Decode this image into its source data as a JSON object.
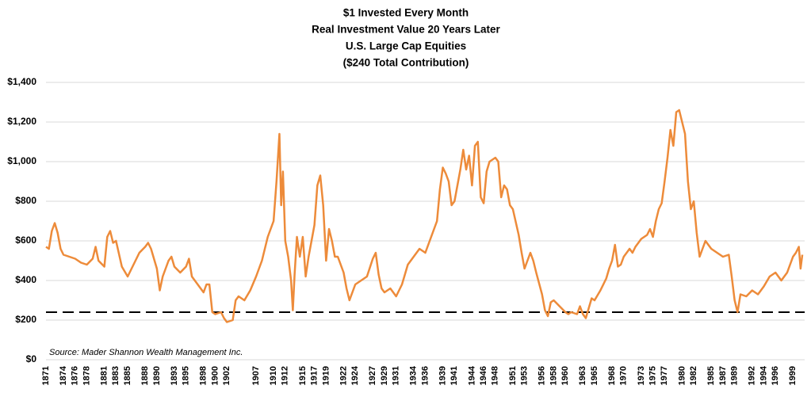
{
  "chart_data": {
    "type": "line",
    "title": [
      "$1 Invested Every Month",
      "Real Investment Value 20 Years Later",
      "U.S. Large Cap Equities",
      "($240 Total Contribution)"
    ],
    "annotation": "Source: Mader Shannon Wealth Management Inc.",
    "reference_line": {
      "value": 240,
      "color": "#000000",
      "style": "dashed"
    },
    "ylim": [
      0,
      1400
    ],
    "yticks": [
      {
        "value": 0,
        "label": "$0"
      },
      {
        "value": 200,
        "label": "$200"
      },
      {
        "value": 400,
        "label": "$400"
      },
      {
        "value": 600,
        "label": "$600"
      },
      {
        "value": 800,
        "label": "$800"
      },
      {
        "value": 1000,
        "label": "$1,000"
      },
      {
        "value": 1200,
        "label": "$1,200"
      },
      {
        "value": 1400,
        "label": "$1,400"
      }
    ],
    "xlim": [
      1871,
      2001
    ],
    "xticks": [
      1871,
      1874,
      1876,
      1878,
      1881,
      1883,
      1885,
      1888,
      1890,
      1893,
      1895,
      1898,
      1900,
      1902,
      1907,
      1910,
      1912,
      1915,
      1917,
      1919,
      1922,
      1924,
      1927,
      1929,
      1931,
      1934,
      1936,
      1939,
      1941,
      1944,
      1946,
      1948,
      1951,
      1953,
      1956,
      1958,
      1960,
      1963,
      1965,
      1968,
      1970,
      1973,
      1975,
      1977,
      1980,
      1982,
      1985,
      1987,
      1989,
      1992,
      1994,
      1996,
      1999
    ],
    "grid": true,
    "series": [
      {
        "name": "Real Investment Value",
        "color": "#ed8b3a",
        "x": [
          1871,
          1871.5,
          1872,
          1872.5,
          1873,
          1873.5,
          1874,
          1875,
          1876,
          1877,
          1878,
          1879,
          1879.5,
          1880,
          1881,
          1881.5,
          1882,
          1882.5,
          1883,
          1884,
          1885,
          1886,
          1887,
          1888,
          1888.5,
          1889,
          1890,
          1890.5,
          1891,
          1892,
          1892.5,
          1893,
          1894,
          1895,
          1895.5,
          1896,
          1897,
          1898,
          1898.5,
          1899,
          1899.5,
          1900,
          1901,
          1901.5,
          1902,
          1903,
          1903.5,
          1904,
          1905,
          1906,
          1907,
          1908,
          1909,
          1910,
          1910.5,
          1911,
          1911.3,
          1911.6,
          1912,
          1912.5,
          1913,
          1913.3,
          1913.6,
          1914,
          1914.5,
          1915,
          1915.5,
          1916,
          1917,
          1917.5,
          1918,
          1918.5,
          1919,
          1919.5,
          1920,
          1920.5,
          1921,
          1922,
          1922.5,
          1923,
          1924,
          1925,
          1926,
          1927,
          1927.5,
          1928,
          1928.5,
          1929,
          1930,
          1931,
          1932,
          1933,
          1934,
          1935,
          1936,
          1937,
          1938,
          1938.5,
          1939,
          1939.5,
          1940,
          1940.5,
          1941,
          1942,
          1942.5,
          1943,
          1943.5,
          1944,
          1944.5,
          1945,
          1945.5,
          1946,
          1946.5,
          1947,
          1948,
          1948.5,
          1949,
          1949.5,
          1950,
          1950.5,
          1951,
          1952,
          1952.5,
          1953,
          1954,
          1954.5,
          1955,
          1956,
          1956.5,
          1957,
          1957.5,
          1958,
          1959,
          1960,
          1960.5,
          1961,
          1962,
          1962.5,
          1963,
          1963.5,
          1964,
          1964.5,
          1965,
          1966,
          1967,
          1967.5,
          1968,
          1968.5,
          1969,
          1969.5,
          1970,
          1971,
          1971.5,
          1972,
          1973,
          1974,
          1974.5,
          1975,
          1975.5,
          1976,
          1976.5,
          1977,
          1977.5,
          1978,
          1978.5,
          1979,
          1979.5,
          1980,
          1980.5,
          1981,
          1981.5,
          1982,
          1982.5,
          1983,
          1983.5,
          1984,
          1985,
          1986,
          1987,
          1988,
          1988.5,
          1989,
          1989.5,
          1990,
          1991,
          1992,
          1993,
          1994,
          1995,
          1996,
          1997,
          1998,
          1998.5,
          1999,
          1999.5,
          2000,
          2000.3,
          2000.6
        ],
        "values": [
          570,
          560,
          650,
          690,
          640,
          560,
          530,
          520,
          510,
          490,
          480,
          510,
          570,
          500,
          470,
          620,
          650,
          590,
          600,
          470,
          420,
          480,
          540,
          570,
          590,
          560,
          460,
          350,
          420,
          500,
          520,
          470,
          440,
          470,
          510,
          420,
          380,
          340,
          380,
          380,
          240,
          230,
          240,
          210,
          190,
          200,
          300,
          320,
          300,
          350,
          420,
          500,
          620,
          700,
          900,
          1140,
          780,
          950,
          600,
          520,
          400,
          250,
          430,
          620,
          520,
          620,
          420,
          520,
          680,
          880,
          930,
          780,
          500,
          660,
          600,
          520,
          520,
          440,
          360,
          300,
          380,
          400,
          420,
          510,
          540,
          430,
          360,
          340,
          360,
          320,
          380,
          480,
          520,
          560,
          540,
          620,
          700,
          860,
          970,
          940,
          900,
          780,
          800,
          960,
          1060,
          960,
          1030,
          880,
          1080,
          1100,
          820,
          790,
          950,
          1000,
          1020,
          1000,
          820,
          880,
          860,
          780,
          760,
          630,
          540,
          460,
          540,
          500,
          440,
          330,
          250,
          220,
          290,
          300,
          270,
          240,
          230,
          240,
          230,
          270,
          230,
          210,
          260,
          310,
          300,
          350,
          410,
          460,
          500,
          580,
          470,
          480,
          520,
          560,
          540,
          570,
          610,
          630,
          660,
          620,
          700,
          760,
          790,
          900,
          1020,
          1160,
          1080,
          1250,
          1260,
          1200,
          1140,
          900,
          760,
          800,
          640,
          520,
          560,
          600,
          560,
          540,
          520,
          530,
          420,
          300,
          240,
          330,
          320,
          350,
          330,
          370,
          420,
          440,
          400,
          440,
          480,
          520,
          540,
          570,
          460,
          530
        ]
      }
    ]
  }
}
